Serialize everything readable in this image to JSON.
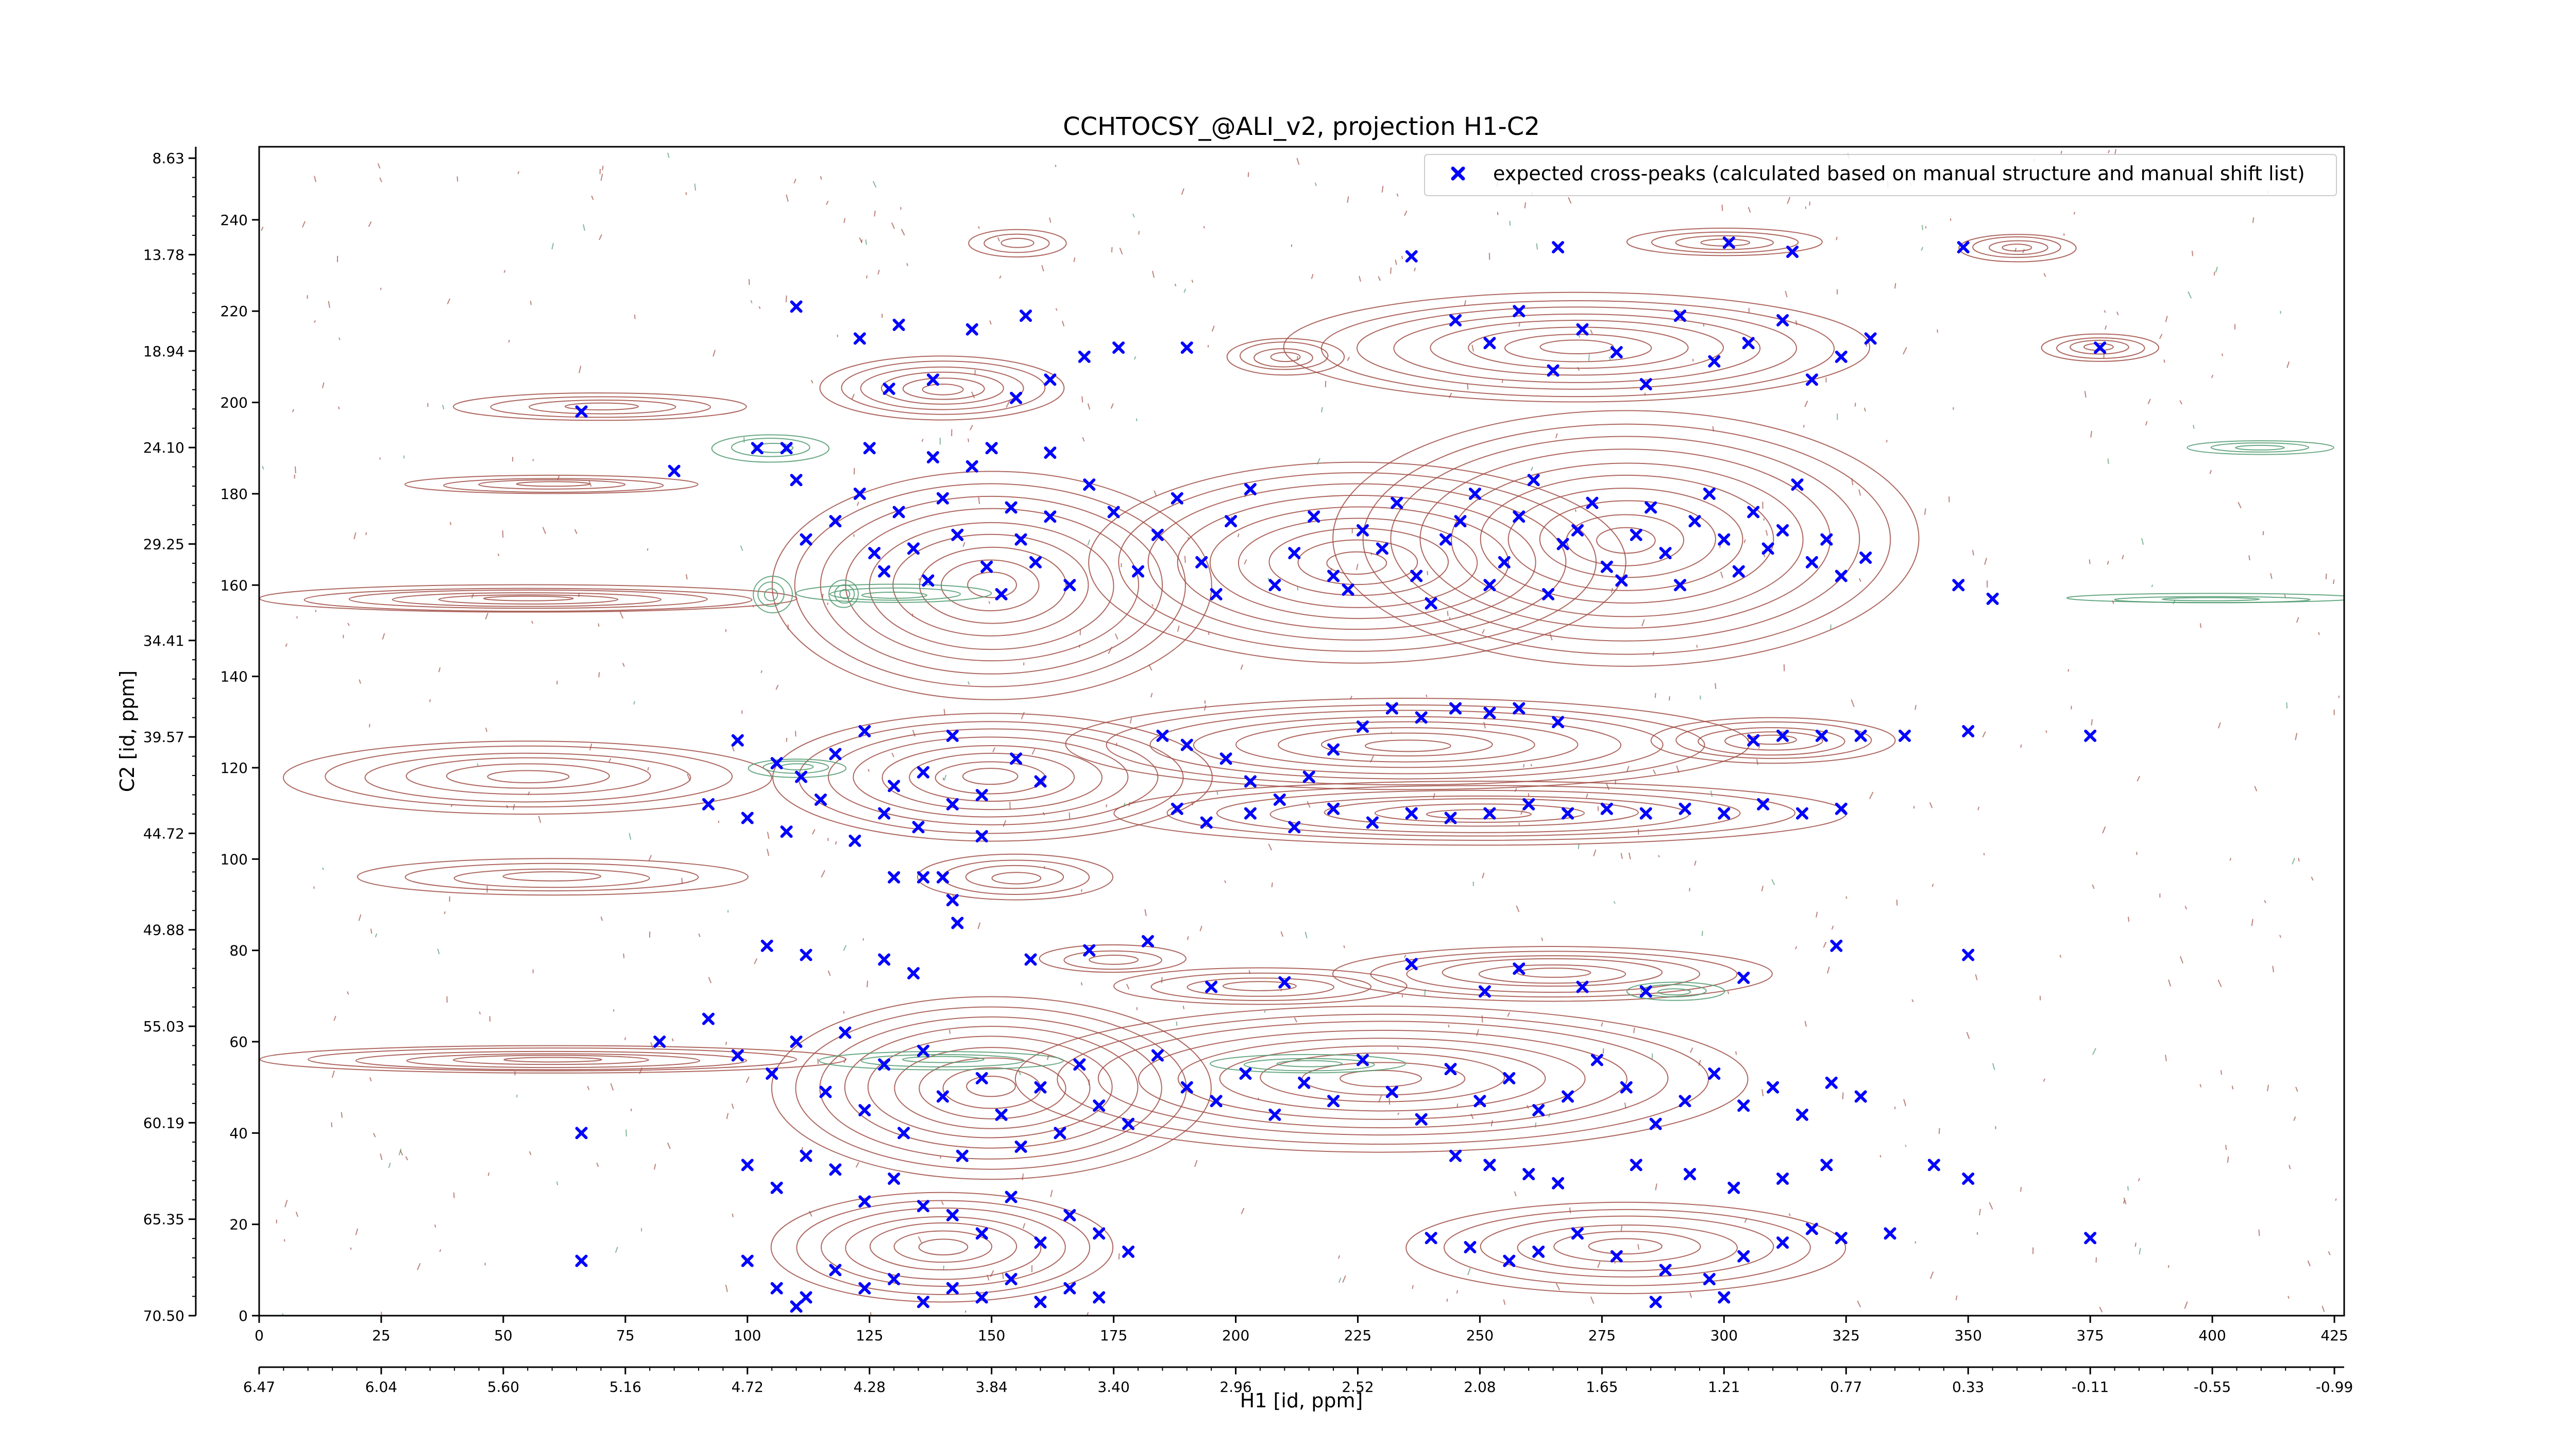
{
  "chart_data": {
    "type": "scatter",
    "title": "CCHTOCSY_@ALI_v2, projection H1-C2",
    "xlabel": "H1 [id, ppm]",
    "ylabel": "C2 [id, ppm]",
    "xlim": [
      0,
      427
    ],
    "ylim": [
      0,
      256
    ],
    "x_ticks": [
      0,
      25,
      50,
      75,
      100,
      125,
      150,
      175,
      200,
      225,
      250,
      275,
      300,
      325,
      350,
      375,
      400,
      425
    ],
    "y_ticks": [
      0,
      20,
      40,
      60,
      80,
      100,
      120,
      140,
      160,
      180,
      200,
      220,
      240
    ],
    "ppm_x_tick_labels": [
      "6.47",
      "6.04",
      "5.60",
      "5.16",
      "4.72",
      "4.28",
      "3.84",
      "3.40",
      "2.96",
      "2.52",
      "2.08",
      "1.65",
      "1.21",
      "0.77",
      "0.33",
      "-0.11",
      "-0.55",
      "-0.99"
    ],
    "ppm_y_tick_labels": [
      "70.50",
      "65.35",
      "60.19",
      "55.03",
      "49.88",
      "44.72",
      "39.57",
      "34.41",
      "29.25",
      "24.10",
      "18.94",
      "13.78",
      "8.63"
    ],
    "grid": false,
    "legend_position": "top-right",
    "colors": {
      "positive_contour": "#a04c44",
      "negative_contour": "#4f9a6e",
      "marker": "#0000ff"
    },
    "series": [
      {
        "name": "expected cross-peaks (calculated based on manual structure and manual shift list)",
        "marker": "x",
        "points": [
          [
            110,
            221
          ],
          [
            123,
            214
          ],
          [
            129,
            203
          ],
          [
            131,
            217
          ],
          [
            138,
            205
          ],
          [
            146,
            216
          ],
          [
            155,
            201
          ],
          [
            157,
            219
          ],
          [
            162,
            205
          ],
          [
            169,
            210
          ],
          [
            176,
            212
          ],
          [
            190,
            212
          ],
          [
            110,
            183
          ],
          [
            112,
            170
          ],
          [
            118,
            174
          ],
          [
            123,
            180
          ],
          [
            126,
            167
          ],
          [
            128,
            163
          ],
          [
            131,
            176
          ],
          [
            134,
            168
          ],
          [
            137,
            161
          ],
          [
            140,
            179
          ],
          [
            143,
            171
          ],
          [
            146,
            186
          ],
          [
            149,
            164
          ],
          [
            152,
            158
          ],
          [
            154,
            177
          ],
          [
            156,
            170
          ],
          [
            159,
            165
          ],
          [
            162,
            175
          ],
          [
            166,
            160
          ],
          [
            170,
            182
          ],
          [
            175,
            176
          ],
          [
            180,
            163
          ],
          [
            184,
            171
          ],
          [
            188,
            179
          ],
          [
            193,
            165
          ],
          [
            196,
            158
          ],
          [
            199,
            174
          ],
          [
            203,
            181
          ],
          [
            208,
            160
          ],
          [
            212,
            167
          ],
          [
            216,
            175
          ],
          [
            220,
            162
          ],
          [
            223,
            159
          ],
          [
            226,
            172
          ],
          [
            230,
            168
          ],
          [
            233,
            178
          ],
          [
            237,
            162
          ],
          [
            240,
            156
          ],
          [
            243,
            170
          ],
          [
            246,
            174
          ],
          [
            249,
            180
          ],
          [
            252,
            160
          ],
          [
            255,
            165
          ],
          [
            258,
            175
          ],
          [
            261,
            183
          ],
          [
            264,
            158
          ],
          [
            267,
            169
          ],
          [
            270,
            172
          ],
          [
            273,
            178
          ],
          [
            276,
            164
          ],
          [
            279,
            161
          ],
          [
            282,
            171
          ],
          [
            285,
            177
          ],
          [
            288,
            167
          ],
          [
            291,
            160
          ],
          [
            294,
            174
          ],
          [
            297,
            180
          ],
          [
            300,
            170
          ],
          [
            303,
            163
          ],
          [
            306,
            176
          ],
          [
            309,
            168
          ],
          [
            312,
            172
          ],
          [
            315,
            182
          ],
          [
            318,
            165
          ],
          [
            321,
            170
          ],
          [
            324,
            162
          ],
          [
            329,
            166
          ],
          [
            348,
            160
          ],
          [
            355,
            157
          ],
          [
            245,
            218
          ],
          [
            252,
            213
          ],
          [
            258,
            220
          ],
          [
            265,
            207
          ],
          [
            271,
            216
          ],
          [
            278,
            211
          ],
          [
            284,
            204
          ],
          [
            291,
            219
          ],
          [
            298,
            209
          ],
          [
            305,
            213
          ],
          [
            312,
            218
          ],
          [
            318,
            205
          ],
          [
            324,
            210
          ],
          [
            330,
            214
          ],
          [
            236,
            232
          ],
          [
            266,
            234
          ],
          [
            301,
            235
          ],
          [
            314,
            233
          ],
          [
            349,
            234
          ],
          [
            377,
            212
          ],
          [
            66,
            198
          ],
          [
            85,
            185
          ],
          [
            102,
            190
          ],
          [
            108,
            190
          ],
          [
            125,
            190
          ],
          [
            138,
            188
          ],
          [
            150,
            190
          ],
          [
            162,
            189
          ],
          [
            98,
            126
          ],
          [
            106,
            121
          ],
          [
            111,
            118
          ],
          [
            118,
            123
          ],
          [
            124,
            128
          ],
          [
            130,
            116
          ],
          [
            136,
            119
          ],
          [
            142,
            127
          ],
          [
            148,
            114
          ],
          [
            155,
            122
          ],
          [
            160,
            117
          ],
          [
            92,
            112
          ],
          [
            100,
            109
          ],
          [
            108,
            106
          ],
          [
            115,
            113
          ],
          [
            122,
            104
          ],
          [
            128,
            110
          ],
          [
            135,
            107
          ],
          [
            142,
            112
          ],
          [
            148,
            105
          ],
          [
            130,
            96
          ],
          [
            136,
            96
          ],
          [
            140,
            96
          ],
          [
            142,
            91
          ],
          [
            143,
            86
          ],
          [
            185,
            127
          ],
          [
            190,
            125
          ],
          [
            198,
            122
          ],
          [
            203,
            117
          ],
          [
            209,
            113
          ],
          [
            215,
            118
          ],
          [
            220,
            124
          ],
          [
            226,
            129
          ],
          [
            232,
            133
          ],
          [
            238,
            131
          ],
          [
            245,
            133
          ],
          [
            252,
            132
          ],
          [
            258,
            133
          ],
          [
            266,
            130
          ],
          [
            188,
            111
          ],
          [
            194,
            108
          ],
          [
            203,
            110
          ],
          [
            212,
            107
          ],
          [
            220,
            111
          ],
          [
            228,
            108
          ],
          [
            236,
            110
          ],
          [
            244,
            109
          ],
          [
            252,
            110
          ],
          [
            260,
            112
          ],
          [
            268,
            110
          ],
          [
            276,
            111
          ],
          [
            284,
            110
          ],
          [
            292,
            111
          ],
          [
            300,
            110
          ],
          [
            308,
            112
          ],
          [
            316,
            110
          ],
          [
            324,
            111
          ],
          [
            306,
            126
          ],
          [
            312,
            127
          ],
          [
            320,
            127
          ],
          [
            328,
            127
          ],
          [
            337,
            127
          ],
          [
            350,
            128
          ],
          [
            375,
            127
          ],
          [
            104,
            81
          ],
          [
            112,
            79
          ],
          [
            128,
            78
          ],
          [
            134,
            75
          ],
          [
            158,
            78
          ],
          [
            170,
            80
          ],
          [
            182,
            82
          ],
          [
            195,
            72
          ],
          [
            210,
            73
          ],
          [
            236,
            77
          ],
          [
            251,
            71
          ],
          [
            258,
            76
          ],
          [
            271,
            72
          ],
          [
            284,
            71
          ],
          [
            304,
            74
          ],
          [
            323,
            81
          ],
          [
            350,
            79
          ],
          [
            82,
            60
          ],
          [
            92,
            65
          ],
          [
            98,
            57
          ],
          [
            105,
            53
          ],
          [
            110,
            60
          ],
          [
            116,
            49
          ],
          [
            120,
            62
          ],
          [
            124,
            45
          ],
          [
            128,
            55
          ],
          [
            132,
            40
          ],
          [
            136,
            58
          ],
          [
            140,
            48
          ],
          [
            144,
            35
          ],
          [
            148,
            52
          ],
          [
            152,
            44
          ],
          [
            156,
            37
          ],
          [
            160,
            50
          ],
          [
            164,
            40
          ],
          [
            168,
            55
          ],
          [
            172,
            46
          ],
          [
            178,
            42
          ],
          [
            184,
            57
          ],
          [
            190,
            50
          ],
          [
            196,
            47
          ],
          [
            202,
            53
          ],
          [
            208,
            44
          ],
          [
            214,
            51
          ],
          [
            220,
            47
          ],
          [
            226,
            56
          ],
          [
            232,
            49
          ],
          [
            238,
            43
          ],
          [
            244,
            54
          ],
          [
            250,
            47
          ],
          [
            256,
            52
          ],
          [
            262,
            45
          ],
          [
            268,
            48
          ],
          [
            274,
            56
          ],
          [
            280,
            50
          ],
          [
            286,
            42
          ],
          [
            292,
            47
          ],
          [
            298,
            53
          ],
          [
            304,
            46
          ],
          [
            310,
            50
          ],
          [
            316,
            44
          ],
          [
            322,
            51
          ],
          [
            328,
            48
          ],
          [
            66,
            40
          ],
          [
            100,
            33
          ],
          [
            106,
            28
          ],
          [
            112,
            35
          ],
          [
            118,
            32
          ],
          [
            124,
            25
          ],
          [
            130,
            30
          ],
          [
            136,
            24
          ],
          [
            142,
            22
          ],
          [
            148,
            18
          ],
          [
            154,
            26
          ],
          [
            160,
            16
          ],
          [
            166,
            22
          ],
          [
            172,
            18
          ],
          [
            178,
            14
          ],
          [
            100,
            12
          ],
          [
            106,
            6
          ],
          [
            112,
            4
          ],
          [
            118,
            10
          ],
          [
            124,
            6
          ],
          [
            130,
            8
          ],
          [
            136,
            3
          ],
          [
            142,
            6
          ],
          [
            148,
            4
          ],
          [
            154,
            8
          ],
          [
            160,
            3
          ],
          [
            166,
            6
          ],
          [
            172,
            4
          ],
          [
            66,
            12
          ],
          [
            110,
            2
          ],
          [
            245,
            35
          ],
          [
            252,
            33
          ],
          [
            260,
            31
          ],
          [
            266,
            29
          ],
          [
            282,
            33
          ],
          [
            293,
            31
          ],
          [
            302,
            28
          ],
          [
            312,
            30
          ],
          [
            321,
            33
          ],
          [
            343,
            33
          ],
          [
            350,
            30
          ],
          [
            240,
            17
          ],
          [
            248,
            15
          ],
          [
            256,
            12
          ],
          [
            262,
            14
          ],
          [
            270,
            18
          ],
          [
            278,
            13
          ],
          [
            288,
            10
          ],
          [
            297,
            8
          ],
          [
            304,
            13
          ],
          [
            312,
            16
          ],
          [
            318,
            19
          ],
          [
            324,
            17
          ],
          [
            334,
            18
          ],
          [
            375,
            17
          ],
          [
            300,
            4
          ],
          [
            286,
            3
          ]
        ]
      }
    ]
  }
}
